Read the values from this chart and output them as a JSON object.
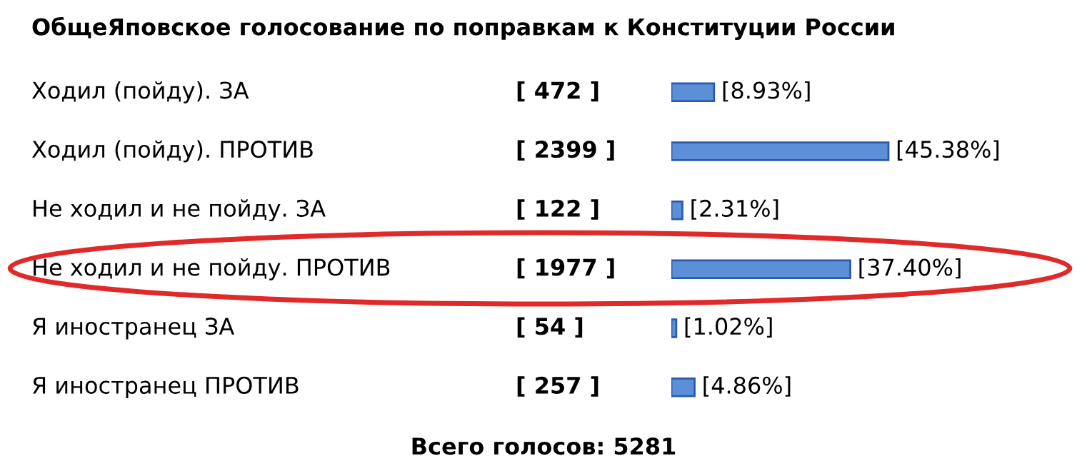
{
  "chart_data": {
    "type": "bar",
    "orientation": "horizontal",
    "title": "ОбщеЯповское голосование по поправкам к Конституции России",
    "categories": [
      "Ходил (пойду). ЗА",
      "Ходил (пойду). ПРОТИВ",
      "Не ходил и не пойду. ЗА",
      "Не ходил и не пойду. ПРОТИВ",
      "Я иностранец ЗА",
      "Я иностранец ПРОТИВ"
    ],
    "values": [
      8.93,
      45.38,
      2.31,
      37.4,
      1.02,
      4.86
    ],
    "value_labels": [
      "[8.93%]",
      "[45.38%]",
      "[2.31%]",
      "[37.40%]",
      "[1.02%]",
      "[4.86%]"
    ],
    "color": "#5b8fd8",
    "annotations": [
      "[ 472 ]",
      "[ 2399 ]",
      "[ 122 ]",
      "[ 1977 ]",
      "[ 54 ]",
      "[ 257 ]",
      "Всего голосов: 5281"
    ]
  }
}
